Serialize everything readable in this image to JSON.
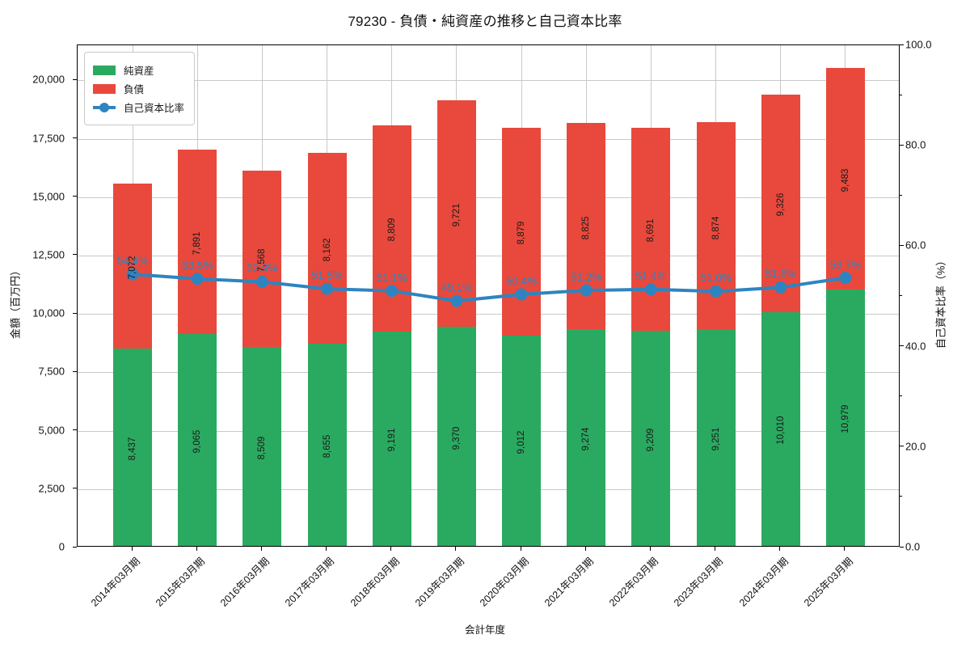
{
  "page": {
    "title": "79230 - 負債・純資産の推移と自己資本比率"
  },
  "colors": {
    "equity_green": "#2aaa60",
    "debt_red": "#e8493c",
    "ratio_blue": "#2e84c0",
    "grid": "#c9c9c9",
    "spine": "#000000",
    "text": "#111111"
  },
  "chart_data": {
    "type": "bar",
    "subtype": "stacked-bar-with-line",
    "title": "79230 - 負債・純資産の推移と自己資本比率",
    "xlabel": "会計年度",
    "ylabel_left": "金額（百万円）",
    "ylabel_right": "自己資本比率（%）",
    "grid": true,
    "legend_position": "upper-left",
    "categories": [
      "2014年03月期",
      "2015年03月期",
      "2016年03月期",
      "2017年03月期",
      "2018年03月期",
      "2019年03月期",
      "2020年03月期",
      "2021年03月期",
      "2022年03月期",
      "2023年03月期",
      "2024年03月期",
      "2025年03月期"
    ],
    "series": [
      {
        "name": "純資産",
        "type": "bar",
        "values": [
          8437,
          9065,
          8509,
          8655,
          9191,
          9370,
          9012,
          9274,
          9209,
          9251,
          10010,
          10979
        ],
        "labels": [
          "8,437",
          "9,065",
          "8,509",
          "8,655",
          "9,191",
          "9,370",
          "9,012",
          "9,274",
          "9,209",
          "9,251",
          "10,010",
          "10,979"
        ]
      },
      {
        "name": "負債",
        "type": "bar",
        "values": [
          7072,
          7891,
          7568,
          8162,
          8809,
          9721,
          8879,
          8825,
          8691,
          8874,
          9326,
          9483
        ],
        "labels": [
          "7,072",
          "7,891",
          "7,568",
          "8,162",
          "8,809",
          "9,721",
          "8,879",
          "8,825",
          "8,691",
          "8,874",
          "9,326",
          "9,483"
        ]
      },
      {
        "name": "自己資本比率",
        "type": "line",
        "axis": "right",
        "values": [
          54.4,
          53.5,
          52.9,
          51.5,
          51.1,
          49.1,
          50.4,
          51.2,
          51.4,
          51.0,
          51.8,
          53.7
        ],
        "labels": [
          "54.4%",
          "53.5%",
          "52.9%",
          "51.5%",
          "51.1%",
          "49.1%",
          "50.4%",
          "51.2%",
          "51.4%",
          "51.0%",
          "51.8%",
          "53.7%"
        ]
      }
    ],
    "ylim_left": [
      0,
      21500
    ],
    "ylim_right": [
      0,
      100
    ],
    "yticks_left": {
      "values": [
        0,
        2500,
        5000,
        7500,
        10000,
        12500,
        15000,
        17500,
        20000
      ],
      "labels": [
        "0",
        "2,500",
        "5,000",
        "7,500",
        "10,000",
        "12,500",
        "15,000",
        "17,500",
        "20,000"
      ]
    },
    "yticks_right": {
      "values": [
        0,
        20,
        40,
        60,
        80,
        100
      ],
      "labels": [
        "0.0",
        "20.0",
        "40.0",
        "60.0",
        "80.0",
        "100.0"
      ],
      "minor_values": [
        10,
        30,
        50,
        70,
        90
      ]
    }
  },
  "legend": {
    "items": [
      {
        "label": "純資産",
        "marker": "green-swatch"
      },
      {
        "label": "負債",
        "marker": "red-swatch"
      },
      {
        "label": "自己資本比率",
        "marker": "blue-line-dot"
      }
    ]
  }
}
